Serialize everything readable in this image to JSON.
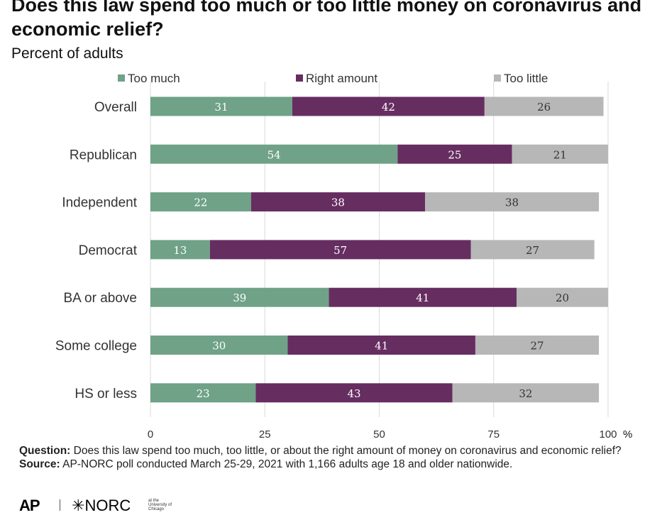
{
  "header": {
    "title": "Does this law spend too much or too little money on coronavirus and economic relief?",
    "subtitle": "Percent of adults"
  },
  "chart_data": {
    "type": "bar",
    "orientation": "horizontal",
    "stacked": true,
    "categories": [
      "Overall",
      "Republican",
      "Independent",
      "Democrat",
      "BA or above",
      "Some college",
      "HS or less"
    ],
    "series": [
      {
        "name": "Too much",
        "color": "#6fa287",
        "values": [
          31,
          54,
          22,
          13,
          39,
          30,
          23
        ]
      },
      {
        "name": "Right amount",
        "color": "#662d61",
        "values": [
          42,
          25,
          38,
          57,
          41,
          41,
          43
        ]
      },
      {
        "name": "Too little",
        "color": "#b7b7b7",
        "values": [
          26,
          21,
          38,
          27,
          20,
          27,
          32
        ]
      }
    ],
    "xlim": [
      0,
      100
    ],
    "xticks": [
      0,
      25,
      50,
      75,
      100
    ],
    "xunit": "%",
    "grid": true,
    "legend_position": "top"
  },
  "footer": {
    "question_label": "Question:",
    "question_text": " Does this law spend too much, too little, or about the right amount of money on coronavirus and economic relief?",
    "source_label": "Source:",
    "source_text": " AP-NORC poll conducted March 25-29, 2021 with 1,166 adults age 18 and older nationwide."
  },
  "logos": {
    "ap": "AP",
    "norc": "NORC",
    "norc_sub": "at the University of Chicago"
  }
}
